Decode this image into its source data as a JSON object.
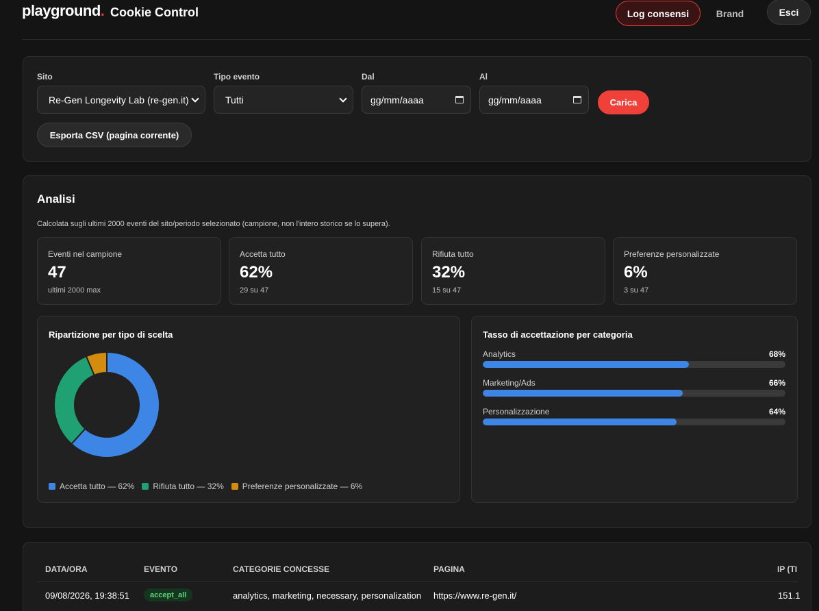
{
  "header": {
    "logo_text": "playground",
    "logo_dot": ".",
    "app_title": "Cookie Control",
    "log_button": "Log consensi",
    "brand_button": "Brand",
    "exit_button": "Esci"
  },
  "filters": {
    "site_label": "Sito",
    "site_value": "Re-Gen Longevity Lab (re-gen.it)",
    "event_type_label": "Tipo evento",
    "event_type_value": "Tutti",
    "from_label": "Dal",
    "from_placeholder": "gg/mm/aaaa",
    "to_label": "Al",
    "to_placeholder": "gg/mm/aaaa",
    "load_button": "Carica",
    "export_button": "Esporta CSV (pagina corrente)"
  },
  "analisi": {
    "title": "Analisi",
    "subtitle": "Calcolata sugli ultimi 2000 eventi del sito/periodo selezionato (campione, non l'intero storico se lo supera).",
    "stats": [
      {
        "label": "Eventi nel campione",
        "value": "47",
        "sub": "ultimi 2000 max"
      },
      {
        "label": "Accetta tutto",
        "value": "62%",
        "sub": "29 su 47"
      },
      {
        "label": "Rifiuta tutto",
        "value": "32%",
        "sub": "15 su 47"
      },
      {
        "label": "Preferenze personalizzate",
        "value": "6%",
        "sub": "3 su 47"
      }
    ],
    "donut_title": "Ripartizione per tipo di scelta",
    "legend": [
      {
        "text": "Accetta tutto — 62%",
        "color": "#3d86e6"
      },
      {
        "text": "Rifiuta tutto — 32%",
        "color": "#1fa173"
      },
      {
        "text": "Preferenze personalizzate — 6%",
        "color": "#d38c0d"
      }
    ],
    "bars_title": "Tasso di accettazione per categoria",
    "bars": [
      {
        "label": "Analytics",
        "pct_text": "68%",
        "pct": 68
      },
      {
        "label": "Marketing/Ads",
        "pct_text": "66%",
        "pct": 66
      },
      {
        "label": "Personalizzazione",
        "pct_text": "64%",
        "pct": 64
      }
    ]
  },
  "chart_data": {
    "type": "pie",
    "categories": [
      "Accetta tutto",
      "Rifiuta tutto",
      "Preferenze personalizzate"
    ],
    "values": [
      29,
      15,
      3
    ],
    "colors": [
      "#3d86e6",
      "#1fa173",
      "#d38c0d"
    ],
    "title": "Ripartizione per tipo di scelta"
  },
  "table": {
    "headers": [
      "DATA/ORA",
      "EVENTO",
      "CATEGORIE CONCESSE",
      "PAGINA",
      "IP (TI"
    ],
    "rows": [
      {
        "datetime": "09/08/2026, 19:38:51",
        "event": "accept_all",
        "categories": "analytics, marketing, necessary, personalization",
        "page": "https://www.re-gen.it/",
        "ip": "151.1"
      }
    ]
  }
}
